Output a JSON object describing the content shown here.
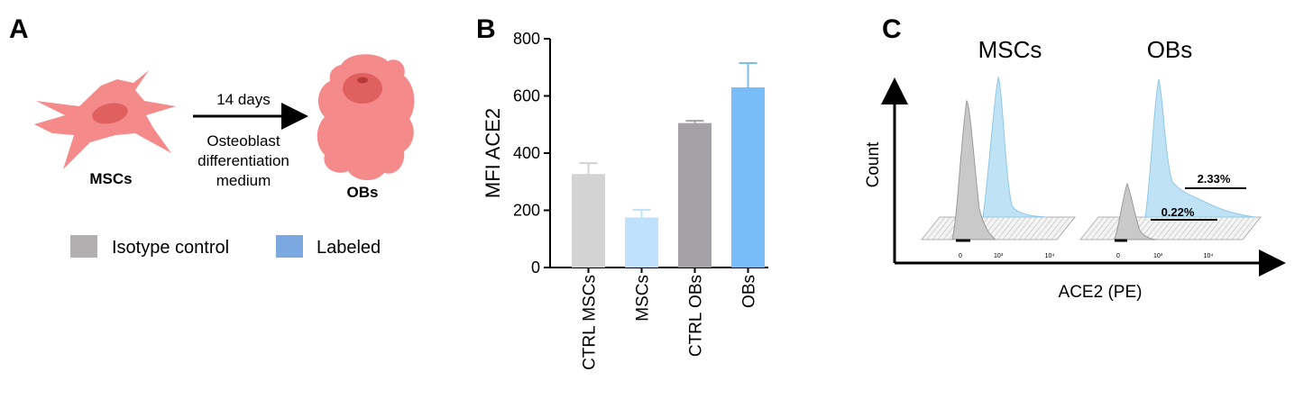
{
  "panels": {
    "a": {
      "letter": "A",
      "arrow_top": "14 days",
      "arrow_bottom": [
        "Osteoblast",
        "differentiation",
        "medium"
      ],
      "cell1_label": "MSCs",
      "cell2_label": "OBs",
      "legend": [
        {
          "label": "Isotype control",
          "color": "#b3afb1"
        },
        {
          "label": "Labeled",
          "color": "#7ba8e0"
        }
      ],
      "cell_color": "#f48a8a",
      "nucleus_color": "#e05f5f"
    },
    "b": {
      "letter": "B"
    },
    "c": {
      "letter": "C",
      "title_left": "MSCs",
      "title_right": "OBs",
      "ylabel": "Count",
      "xlabel": "ACE2 (PE)",
      "pct_high": "2.33%",
      "pct_low": "0.22%",
      "tick_labels": [
        "0",
        "10³",
        "10⁴"
      ],
      "colors": {
        "control": "#c9c9c9",
        "labeled": "#bfe3f5"
      }
    }
  },
  "chart_data": {
    "type": "bar",
    "title": "",
    "xlabel": "",
    "ylabel": "MFI ACE2",
    "ylim": [
      0,
      800
    ],
    "yticks": [
      0,
      200,
      400,
      600,
      800
    ],
    "categories": [
      "CTRL MSCs",
      "MSCs",
      "CTRL OBs",
      "OBs"
    ],
    "values": [
      327,
      175,
      505,
      630
    ],
    "errors": [
      38,
      27,
      8,
      85
    ],
    "colors": [
      "#d3d3d3",
      "#bfe1fb",
      "#a4a2a6",
      "#79bdf8"
    ],
    "grid": false,
    "legend": "none"
  }
}
